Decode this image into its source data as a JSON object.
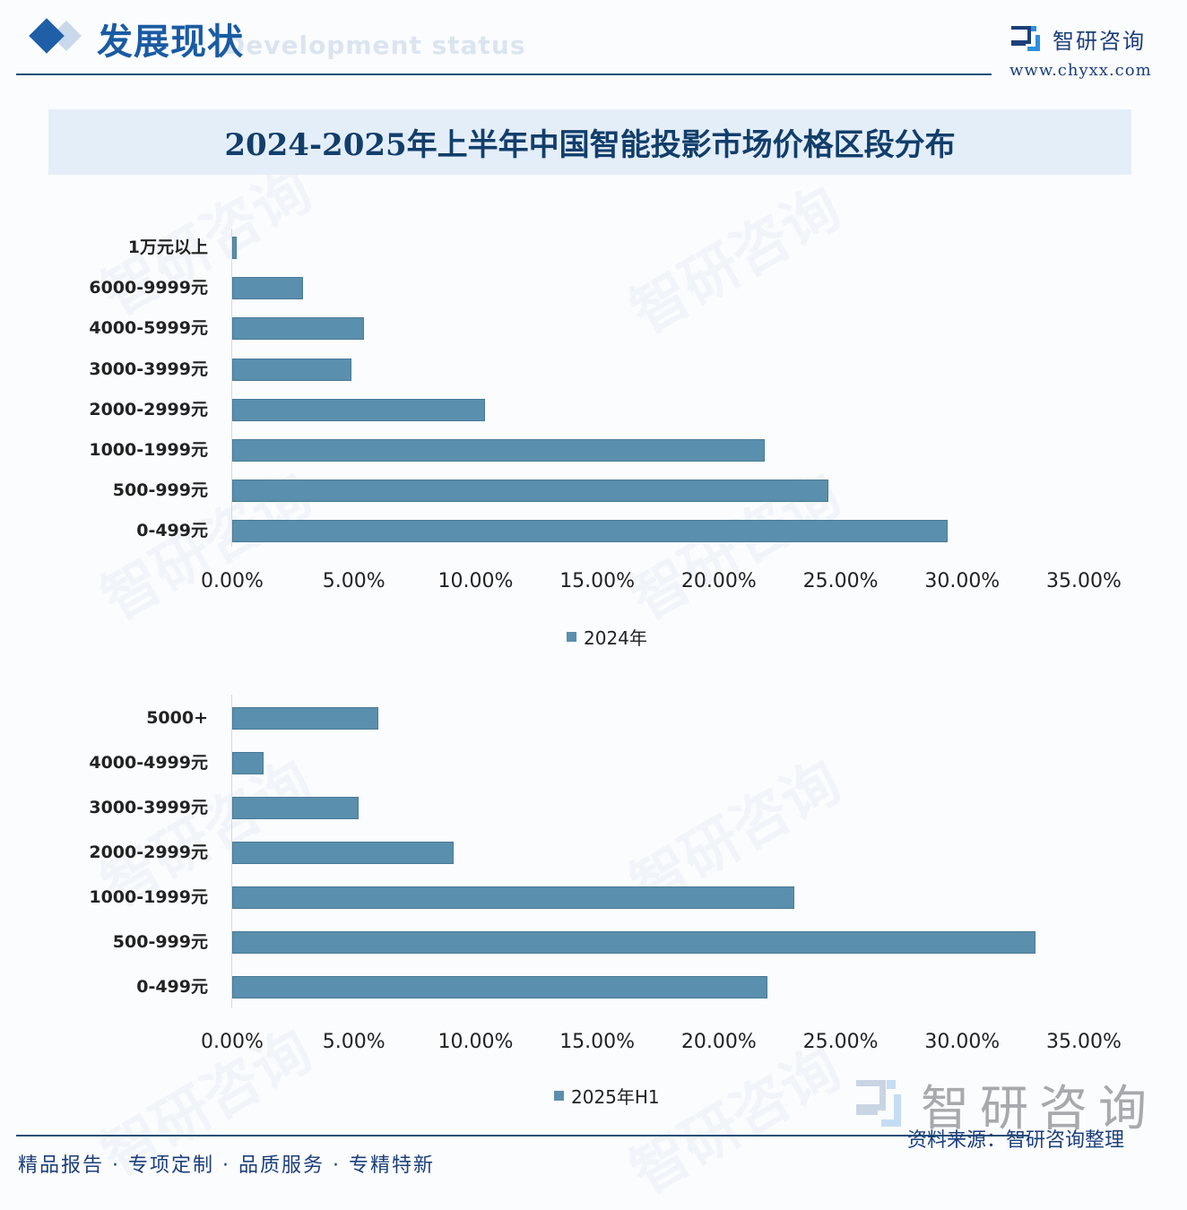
{
  "header": {
    "section_title": "发展现状",
    "section_subtitle": "Development status",
    "brand_name": "智研咨询",
    "brand_url": "www.chyxx.com"
  },
  "title": "2024-2025年上半年中国智能投影市场价格区段分布",
  "watermark": "智研咨询",
  "chart_data": [
    {
      "type": "bar",
      "orientation": "horizontal",
      "title": "2024-2025年上半年中国智能投影市场价格区段分布",
      "categories": [
        "1万元以上",
        "6000-9999元",
        "4000-5999元",
        "3000-3999元",
        "2000-2999元",
        "1000-1999元",
        "500-999元",
        "0-499元"
      ],
      "series": [
        {
          "name": "2024年",
          "values": [
            0.2,
            2.9,
            5.4,
            4.9,
            10.4,
            21.9,
            24.5,
            29.4
          ]
        }
      ],
      "xlabel": "",
      "ylabel": "",
      "xlim": [
        0,
        35
      ],
      "tick_labels": [
        "0.00%",
        "5.00%",
        "10.00%",
        "15.00%",
        "20.00%",
        "25.00%",
        "30.00%",
        "35.00%"
      ],
      "grid": false,
      "legend": {
        "position": "bottom",
        "entries": [
          "2024年"
        ]
      },
      "color": "#5a8fad"
    },
    {
      "type": "bar",
      "orientation": "horizontal",
      "categories": [
        "5000+",
        "4000-4999元",
        "3000-3999元",
        "2000-2999元",
        "1000-1999元",
        "500-999元",
        "0-499元"
      ],
      "series": [
        {
          "name": "2025年H1",
          "values": [
            6.0,
            1.3,
            5.2,
            9.1,
            23.1,
            33.0,
            22.0
          ]
        }
      ],
      "xlabel": "",
      "ylabel": "",
      "xlim": [
        0,
        35
      ],
      "tick_labels": [
        "0.00%",
        "5.00%",
        "10.00%",
        "15.00%",
        "20.00%",
        "25.00%",
        "30.00%",
        "35.00%"
      ],
      "grid": false,
      "legend": {
        "position": "bottom",
        "entries": [
          "2025年H1"
        ]
      },
      "color": "#5a8fad"
    }
  ],
  "footer": {
    "slogan": "精品报告 · 专项定制 · 品质服务 · 专精特新",
    "source": "资料来源：智研咨询整理",
    "brand_name": "智研咨询"
  }
}
